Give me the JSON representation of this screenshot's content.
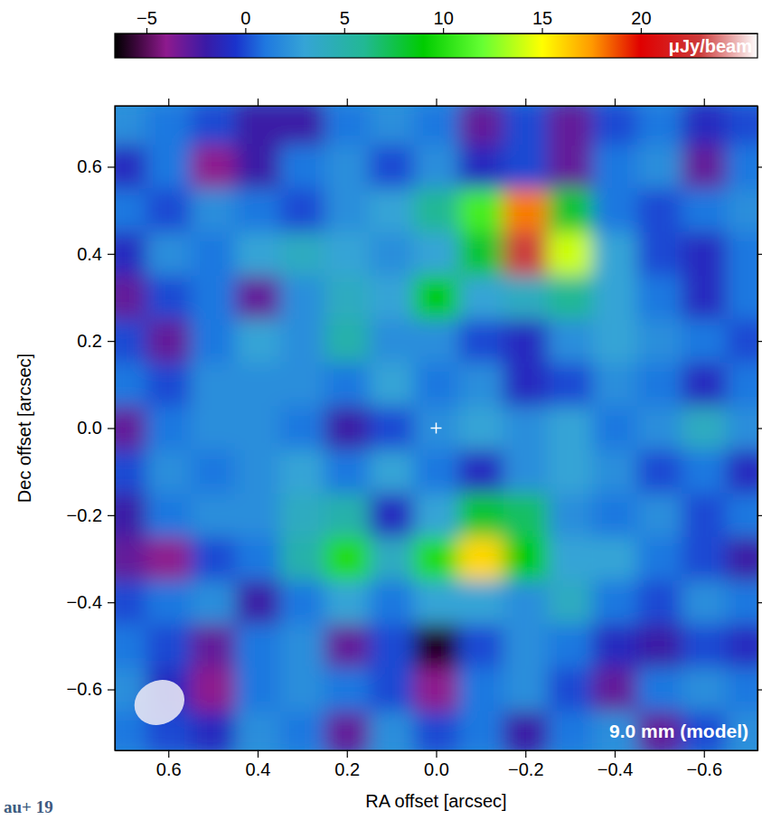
{
  "chart_data": {
    "type": "heatmap",
    "x_label": "RA offset [arcsec]",
    "y_label": "Dec offset [arcsec]",
    "xlim": [
      0.72,
      -0.72
    ],
    "ylim": [
      -0.74,
      0.74
    ],
    "xticks": [
      0.6,
      0.4,
      0.2,
      {
        "value": 0,
        "label": "0.0"
      },
      {
        "value": -0.2,
        "label": "−0.2"
      },
      {
        "value": -0.4,
        "label": "−0.4"
      },
      {
        "value": -0.6,
        "label": "−0.6"
      }
    ],
    "yticks": [
      {
        "value": -0.6,
        "label": "−0.6"
      },
      {
        "value": -0.4,
        "label": "−0.4"
      },
      {
        "value": -0.2,
        "label": "−0.2"
      },
      {
        "value": 0,
        "label": "0.0"
      },
      0.2,
      0.4,
      0.6
    ],
    "x": [
      0.7,
      0.6,
      0.5,
      0.4,
      0.3,
      0.2,
      0.1,
      0,
      -0.1,
      -0.2,
      -0.3,
      -0.4,
      -0.5,
      -0.6,
      -0.7
    ],
    "y": [
      0.7,
      0.6,
      0.5,
      0.4,
      0.3,
      0.2,
      0.1,
      0,
      -0.1,
      -0.2,
      -0.3,
      -0.4,
      -0.5,
      -0.6,
      -0.7
    ],
    "values": [
      [
        2,
        1,
        0,
        -2,
        -2,
        1,
        2,
        1,
        -3,
        0,
        -3,
        0,
        1,
        -1,
        0
      ],
      [
        -1,
        1,
        -4,
        -2,
        1,
        2,
        0,
        2,
        -1,
        0,
        -3,
        1,
        2,
        -3,
        1
      ],
      [
        1,
        0,
        2,
        1,
        0,
        2,
        3,
        6,
        11,
        18,
        8,
        1,
        0,
        1,
        2
      ],
      [
        -1,
        2,
        1,
        3,
        4,
        3,
        2,
        3,
        8,
        23,
        14,
        3,
        0,
        -1,
        1
      ],
      [
        -3,
        0,
        1,
        -3,
        2,
        4,
        3,
        9,
        3,
        4,
        6,
        3,
        1,
        -1,
        1
      ],
      [
        0,
        -3,
        1,
        3,
        2,
        5,
        2,
        2,
        0,
        -1,
        2,
        3,
        2,
        1,
        0
      ],
      [
        1,
        0,
        2,
        2,
        2,
        1,
        3,
        1,
        2,
        -1,
        0,
        2,
        1,
        -1,
        1
      ],
      [
        -3,
        1,
        2,
        2,
        1,
        -2,
        0,
        2,
        3,
        2,
        3,
        1,
        2,
        4,
        2
      ],
      [
        0,
        2,
        1,
        2,
        3,
        1,
        3,
        1,
        -1,
        2,
        3,
        2,
        0,
        1,
        -1
      ],
      [
        -2,
        1,
        2,
        2,
        4,
        5,
        -1,
        3,
        8,
        7,
        2,
        1,
        2,
        0,
        1
      ],
      [
        -3,
        -4,
        0,
        1,
        5,
        10,
        4,
        10,
        16,
        9,
        3,
        3,
        1,
        0,
        -2
      ],
      [
        0,
        1,
        2,
        -2,
        1,
        3,
        1,
        3,
        3,
        2,
        4,
        1,
        0,
        2,
        1
      ],
      [
        1,
        0,
        -3,
        1,
        2,
        -3,
        0,
        -6,
        0,
        2,
        1,
        -1,
        -2,
        0,
        -1
      ],
      [
        2,
        -1,
        -4,
        1,
        2,
        1,
        0,
        -4,
        1,
        2,
        0,
        -3,
        1,
        2,
        1
      ],
      [
        1,
        0,
        -1,
        2,
        1,
        -3,
        2,
        0,
        1,
        -2,
        1,
        2,
        -3,
        0,
        2
      ]
    ],
    "colorbar": {
      "label": "μJy/beam",
      "range": [
        -6.6,
        25.9
      ],
      "ticks": [
        {
          "value": -5,
          "label": "−5"
        },
        0,
        5,
        10,
        15,
        20
      ]
    },
    "beam": {
      "x": 0.62,
      "y": -0.63,
      "width": 0.115,
      "height": 0.1
    },
    "center": {
      "x": 0,
      "y": 0
    },
    "annotations": [
      {
        "text": "9.0 mm (model)"
      },
      {
        "text": "au+ 19"
      }
    ]
  }
}
